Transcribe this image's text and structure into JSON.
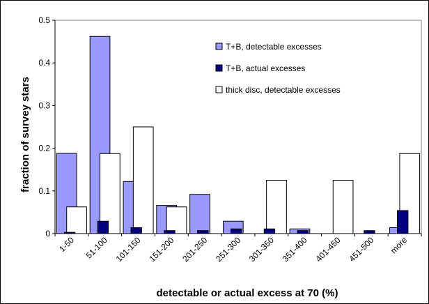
{
  "chart_data": {
    "type": "bar",
    "xlabel": "detectable or actual excess at 70 (%)",
    "ylabel": "fraction of survey stars",
    "ylim": [
      0,
      0.5
    ],
    "yticks": [
      "0",
      "0.1",
      "0.2",
      "0.3",
      "0.4",
      "0.5"
    ],
    "grid": false,
    "legend_position": "top-right",
    "categories": [
      "1-50",
      "51-100",
      "101-150",
      "151-200",
      "201-250",
      "251-300",
      "301-350",
      "351-400",
      "401-450",
      "451-500",
      "more"
    ],
    "series": [
      {
        "name": "T+B, detectable excesses",
        "color": "#9999ff",
        "values": [
          0.188,
          0.462,
          0.122,
          0.066,
          0.092,
          0.029,
          0.0,
          0.011,
          0.0,
          0.0,
          0.014
        ]
      },
      {
        "name": "T+B, actual excesses",
        "color": "#000080",
        "values": [
          0.003,
          0.029,
          0.014,
          0.007,
          0.007,
          0.011,
          0.011,
          0.007,
          0.0,
          0.007,
          0.054
        ]
      },
      {
        "name": "thick disc, detectable excesses",
        "color": "#ffffff",
        "values": [
          0.0625,
          0.1875,
          0.25,
          0.0625,
          0.0,
          0.0,
          0.125,
          0.0,
          0.125,
          0.0,
          0.1875
        ]
      }
    ]
  }
}
